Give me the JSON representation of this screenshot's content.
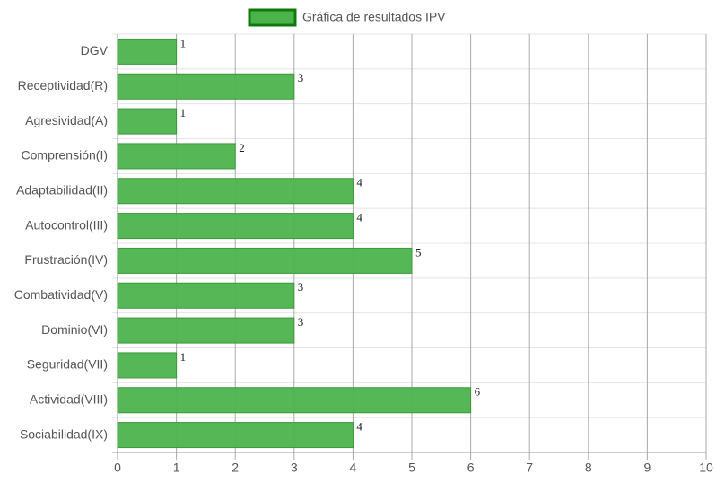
{
  "chart_data": {
    "type": "bar",
    "orientation": "horizontal",
    "legend": "Gráfica de resultados IPV",
    "categories": [
      "DGV",
      "Receptividad(R)",
      "Agresividad(A)",
      "Comprensión(I)",
      "Adaptabilidad(II)",
      "Autocontrol(III)",
      "Frustración(IV)",
      "Combatividad(V)",
      "Dominio(VI)",
      "Seguridad(VII)",
      "Actividad(VIII)",
      "Sociabilidad(IX)"
    ],
    "values": [
      1,
      3,
      1,
      2,
      4,
      4,
      5,
      3,
      3,
      1,
      6,
      4
    ],
    "color": "#4cb34c",
    "xlim": [
      0,
      10
    ],
    "xticks": [
      0,
      1,
      2,
      3,
      4,
      5,
      6,
      7,
      8,
      9,
      10
    ],
    "grid": true
  }
}
